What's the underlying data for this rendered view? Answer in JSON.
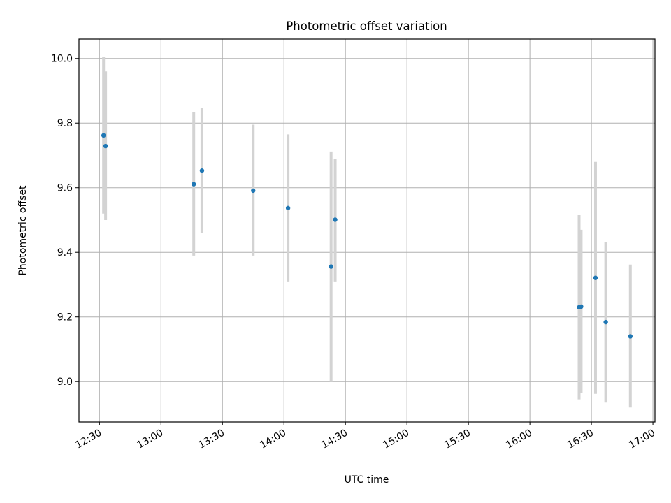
{
  "chart_data": {
    "type": "scatter",
    "title": "Photometric offset variation",
    "xlabel": "UTC time",
    "ylabel": "Photometric offset",
    "x_axis": "time",
    "xlim": [
      "12:20",
      "17:01"
    ],
    "ylim": [
      8.875,
      10.06
    ],
    "xticks": [
      "12:30",
      "13:00",
      "13:30",
      "14:00",
      "14:30",
      "15:00",
      "15:30",
      "16:00",
      "16:30",
      "17:00"
    ],
    "yticks": [
      "9.0",
      "9.2",
      "9.4",
      "9.6",
      "9.8",
      "10.0"
    ],
    "grid": true,
    "colors": {
      "point": "#1f77b4",
      "errorbar": "#d3d3d3",
      "grid": "#b0b0b0"
    },
    "points": [
      {
        "time": "12:32",
        "y": 9.762,
        "ylow": 9.52,
        "yhigh": 10.005
      },
      {
        "time": "12:33",
        "y": 9.729,
        "ylow": 9.5,
        "yhigh": 9.96
      },
      {
        "time": "13:16",
        "y": 9.611,
        "ylow": 9.39,
        "yhigh": 9.835
      },
      {
        "time": "13:20",
        "y": 9.653,
        "ylow": 9.46,
        "yhigh": 9.848
      },
      {
        "time": "13:45",
        "y": 9.591,
        "ylow": 9.39,
        "yhigh": 9.795
      },
      {
        "time": "14:02",
        "y": 9.537,
        "ylow": 9.31,
        "yhigh": 9.765
      },
      {
        "time": "14:23",
        "y": 9.356,
        "ylow": 9.0,
        "yhigh": 9.712
      },
      {
        "time": "14:25",
        "y": 9.501,
        "ylow": 9.31,
        "yhigh": 9.688
      },
      {
        "time": "16:24",
        "y": 9.23,
        "ylow": 8.945,
        "yhigh": 9.515
      },
      {
        "time": "16:25",
        "y": 9.232,
        "ylow": 8.965,
        "yhigh": 9.47
      },
      {
        "time": "16:32",
        "y": 9.321,
        "ylow": 8.962,
        "yhigh": 9.68
      },
      {
        "time": "16:37",
        "y": 9.184,
        "ylow": 8.935,
        "yhigh": 9.432
      },
      {
        "time": "16:49",
        "y": 9.14,
        "ylow": 8.92,
        "yhigh": 9.362
      }
    ]
  }
}
